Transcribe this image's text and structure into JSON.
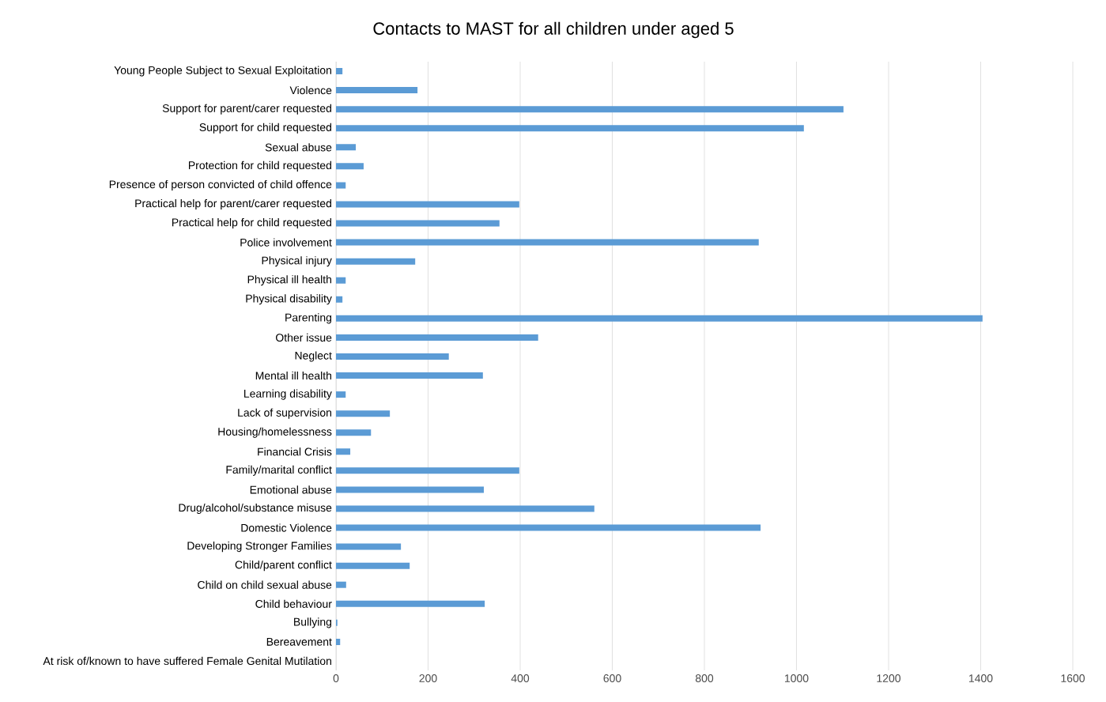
{
  "chart_data": {
    "type": "bar",
    "orientation": "horizontal",
    "title": "Contacts to MAST for all children under aged 5",
    "categories": [
      "Young People Subject to Sexual Exploitation",
      "Violence",
      "Support for parent/carer requested",
      "Support for child requested",
      "Sexual abuse",
      "Protection for child requested",
      "Presence of person convicted of child offence",
      "Practical help for parent/carer requested",
      "Practical help for child requested",
      "Police involvement",
      "Physical injury",
      "Physical ill health",
      "Physical disability",
      "Parenting",
      "Other issue",
      "Neglect",
      "Mental ill health",
      "Learning disability",
      "Lack of supervision",
      "Housing/homelessness",
      "Financial Crisis",
      "Family/marital conflict",
      "Emotional abuse",
      "Drug/alcohol/substance misuse",
      "Domestic Violence",
      "Developing Stronger Families",
      "Child/parent conflict",
      "Child on child sexual abuse",
      "Child behaviour",
      "Bullying",
      "Bereavement",
      "At risk of/known to have suffered Female Genital Mutilation"
    ],
    "values": [
      14,
      177,
      1102,
      1016,
      43,
      60,
      21,
      398,
      355,
      918,
      172,
      21,
      14,
      1404,
      439,
      245,
      319,
      21,
      117,
      76,
      31,
      398,
      321,
      561,
      922,
      141,
      160,
      22,
      323,
      3,
      9,
      0
    ],
    "color": "#5b9bd5",
    "xlim": [
      0,
      1600
    ],
    "xticks": [
      0,
      200,
      400,
      600,
      800,
      1000,
      1200,
      1400,
      1600
    ],
    "grid": "x"
  }
}
